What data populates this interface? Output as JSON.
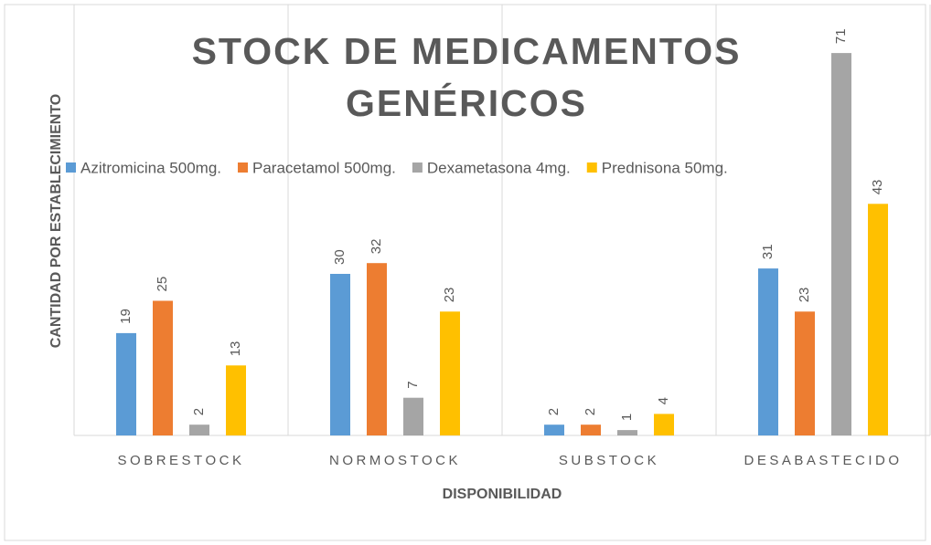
{
  "chart_data": {
    "type": "bar",
    "title": "STOCK DE MEDICAMENTOS GENÉRICOS",
    "x_label": "DISPONIBILIDAD",
    "y_label": "CANTIDAD POR ESTABLECIMIENTO",
    "categories": [
      "SOBRESTOCK",
      "NORMOSTOCK",
      "SUBSTOCK",
      "DESABASTECIDO"
    ],
    "series": [
      {
        "name": "Azitromicina 500mg.",
        "color": "#5b9bd5",
        "values": [
          19,
          30,
          2,
          31
        ]
      },
      {
        "name": "Paracetamol 500mg.",
        "color": "#ed7d31",
        "values": [
          25,
          32,
          2,
          23
        ]
      },
      {
        "name": "Dexametasona 4mg.",
        "color": "#a5a5a5",
        "values": [
          2,
          7,
          1,
          71
        ]
      },
      {
        "name": "Prednisona 50mg.",
        "color": "#ffc000",
        "values": [
          13,
          23,
          4,
          43
        ]
      }
    ],
    "ylim": [
      0,
      80
    ],
    "legend": "top"
  }
}
